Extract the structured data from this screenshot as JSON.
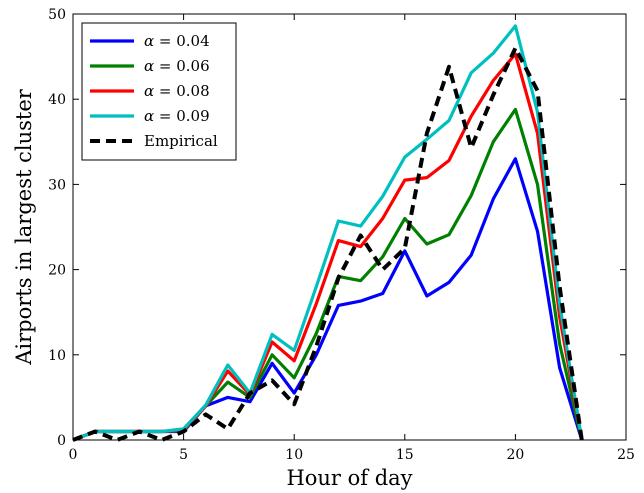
{
  "chart_data": {
    "type": "line",
    "title": "",
    "xlabel": "Hour of day",
    "ylabel": "Airports in largest cluster",
    "xlim": [
      0,
      25
    ],
    "ylim": [
      0,
      50
    ],
    "xticks": [
      "0",
      "5",
      "10",
      "15",
      "20",
      "25"
    ],
    "yticks": [
      "0",
      "10",
      "20",
      "30",
      "40",
      "50"
    ],
    "grid": false,
    "legend_position": "top-left",
    "x": [
      0,
      1,
      2,
      3,
      4,
      5,
      6,
      7,
      8,
      9,
      10,
      11,
      12,
      13,
      14,
      15,
      16,
      17,
      18,
      19,
      20,
      21,
      22,
      23
    ],
    "series": [
      {
        "name": "α = 0.04",
        "label_parts": [
          "α",
          " = 0.04"
        ],
        "color": "#0000ff",
        "dash": "solid",
        "values": [
          0,
          1,
          1,
          1,
          1,
          1,
          4,
          5,
          4.5,
          9,
          5.5,
          10,
          15.8,
          16.3,
          17.2,
          22.2,
          16.9,
          18.5,
          21.7,
          28.3,
          33,
          24.5,
          8.5,
          0
        ]
      },
      {
        "name": "α = 0.06",
        "label_parts": [
          "α",
          " = 0.06"
        ],
        "color": "#008000",
        "dash": "solid",
        "values": [
          0,
          1,
          1,
          1,
          1,
          1.1,
          4,
          6.8,
          5,
          10,
          7.3,
          12.5,
          19.2,
          18.7,
          21.5,
          26,
          23,
          24.1,
          28.7,
          35,
          38.8,
          30,
          11.3,
          0
        ]
      },
      {
        "name": "α = 0.08",
        "label_parts": [
          "α",
          " = 0.08"
        ],
        "color": "#ff0000",
        "dash": "solid",
        "values": [
          0,
          1,
          1,
          1,
          1,
          1.2,
          4,
          8.1,
          5.3,
          11.5,
          9.3,
          16,
          23.4,
          22.7,
          26,
          30.5,
          30.8,
          32.8,
          38,
          42.2,
          45.3,
          36,
          14.5,
          0
        ]
      },
      {
        "name": "α = 0.09",
        "label_parts": [
          "α",
          " = 0.09"
        ],
        "color": "#00bfbf",
        "dash": "solid",
        "values": [
          0,
          1,
          1,
          1,
          1,
          1.3,
          4.1,
          8.8,
          5.5,
          12.4,
          10.5,
          18,
          25.7,
          25.1,
          28.6,
          33.2,
          35.3,
          37.5,
          43.1,
          45.4,
          48.6,
          38.5,
          16,
          0
        ]
      },
      {
        "name": "Empirical",
        "label_parts": [
          "Empirical",
          ""
        ],
        "color": "#000000",
        "dash": "dashed",
        "values": [
          0,
          1,
          0,
          1,
          0,
          1,
          3,
          1.3,
          5.5,
          7,
          4.2,
          11,
          19,
          24,
          20,
          22.5,
          36,
          43.8,
          34.3,
          40.5,
          46,
          41,
          18,
          0
        ]
      }
    ]
  }
}
